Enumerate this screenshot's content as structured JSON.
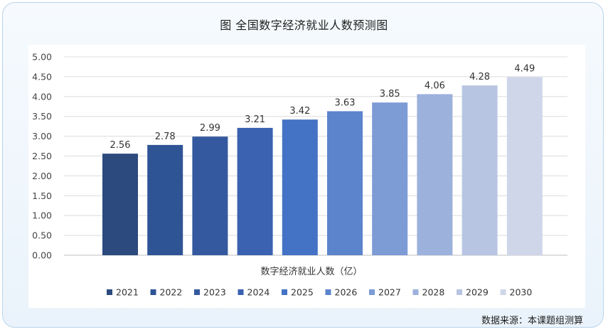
{
  "title": "图  全国数字经济就业人数预测图",
  "source": "数据来源：本课题组测算",
  "chart_data": {
    "type": "bar",
    "title": "图  全国数字经济就业人数预测图",
    "xlabel": "数字经济就业人数（亿）",
    "ylabel": "",
    "categories": [
      "2021",
      "2022",
      "2023",
      "2024",
      "2025",
      "2026",
      "2027",
      "2028",
      "2029",
      "2030"
    ],
    "values": [
      2.56,
      2.78,
      2.99,
      3.21,
      3.42,
      3.63,
      3.85,
      4.06,
      4.28,
      4.49
    ],
    "value_labels": [
      "2.56",
      "2.78",
      "2.99",
      "3.21",
      "3.42",
      "3.63",
      "3.85",
      "4.06",
      "4.28",
      "4.49"
    ],
    "ylim": [
      0,
      5
    ],
    "yticks": [
      "0.00",
      "0.50",
      "1.00",
      "1.50",
      "2.00",
      "2.50",
      "3.00",
      "3.50",
      "4.00",
      "4.50",
      "5.00"
    ],
    "grid": true,
    "legend_position": "bottom",
    "colors": [
      "#2c4a7e",
      "#2f5496",
      "#34599f",
      "#3a62b0",
      "#4472c4",
      "#5c84cc",
      "#7d9bd5",
      "#9cb1dc",
      "#b8c5e2",
      "#d0d6ea"
    ]
  }
}
